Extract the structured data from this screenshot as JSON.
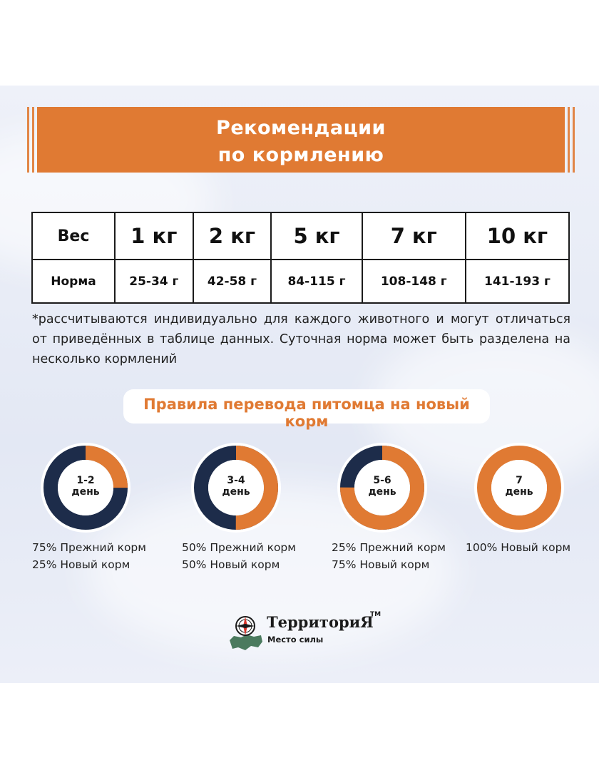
{
  "colors": {
    "accent": "#e07a33",
    "navy": "#1d2c4a",
    "background": "#e8ecf6"
  },
  "header": {
    "line1": "Рекомендации",
    "line2": "по кормлению"
  },
  "table": {
    "weight_header": "Вес",
    "norm_header": "Норма",
    "weights": [
      "1 кг",
      "2 кг",
      "5 кг",
      "7 кг",
      "10 кг"
    ],
    "norms": [
      "25-34 г",
      "42-58 г",
      "84-115 г",
      "108-148 г",
      "141-193 г"
    ]
  },
  "footnote": "*рассчитываются индивидуально для каждого животного и могут отличаться от приведённых в таблице данных. Суточная норма может быть разделена на несколько кормлений",
  "rules": {
    "title": "Правила перевода питомца на новый корм",
    "stages": [
      {
        "day": "1-2",
        "day_word": "день",
        "old_fraction": 0.75,
        "new_fraction": 0.25,
        "line1": "75% Прежний корм",
        "line2": "25% Новый корм"
      },
      {
        "day": "3-4",
        "day_word": "день",
        "old_fraction": 0.5,
        "new_fraction": 0.5,
        "line1": "50% Прежний корм",
        "line2": "50% Новый корм"
      },
      {
        "day": "5-6",
        "day_word": "день",
        "old_fraction": 0.25,
        "new_fraction": 0.75,
        "line1": "25% Прежний корм",
        "line2": "75% Новый корм"
      },
      {
        "day": "7",
        "day_word": "день",
        "old_fraction": 0,
        "new_fraction": 1,
        "line1": "100% Новый корм",
        "line2": ""
      }
    ]
  },
  "logo": {
    "brand": "ТерриториЯ",
    "tm": "TM",
    "slogan": "Место силы",
    "icon": "compass-map-icon"
  }
}
